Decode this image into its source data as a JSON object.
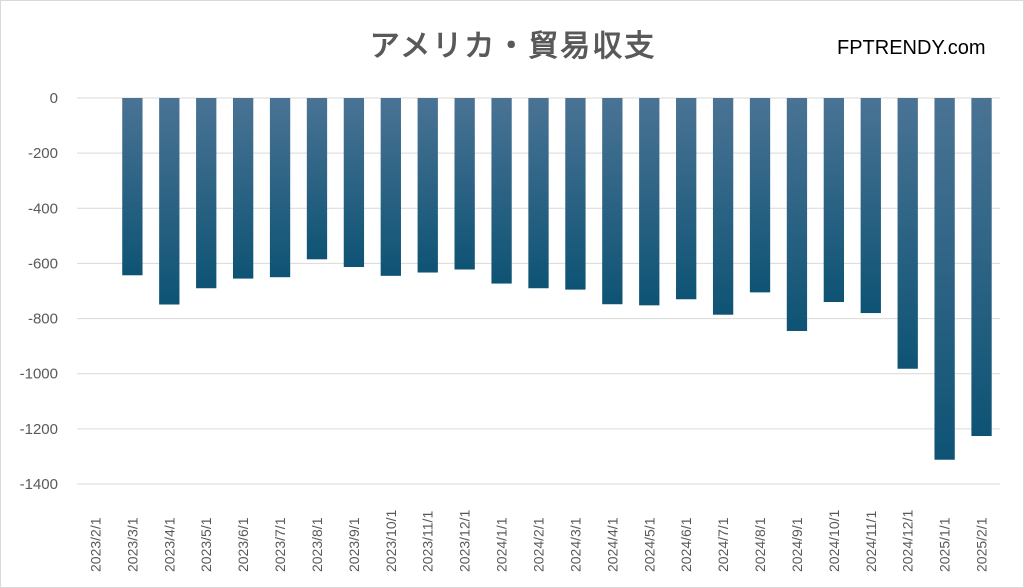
{
  "chart_data": {
    "type": "bar",
    "title": "アメリカ・貿易収支",
    "watermark": "FPTRENDY.com",
    "categories": [
      "2023/2/1",
      "2023/3/1",
      "2023/4/1",
      "2023/5/1",
      "2023/6/1",
      "2023/7/1",
      "2023/8/1",
      "2023/9/1",
      "2023/10/1",
      "2023/11/1",
      "2023/12/1",
      "2024/1/1",
      "2024/2/1",
      "2024/3/1",
      "2024/4/1",
      "2024/5/1",
      "2024/6/1",
      "2024/7/1",
      "2024/8/1",
      "2024/9/1",
      "2024/10/1",
      "2024/11/1",
      "2024/12/1",
      "2025/1/1",
      "2025/2/1"
    ],
    "values": [
      null,
      -643,
      -749,
      -690,
      -655,
      -650,
      -585,
      -613,
      -645,
      -633,
      -622,
      -673,
      -690,
      -695,
      -748,
      -752,
      -730,
      -786,
      -705,
      -845,
      -740,
      -780,
      -982,
      -1312,
      -1226
    ],
    "ylim": [
      -1400,
      0
    ],
    "yticks": [
      0,
      -200,
      -400,
      -600,
      -800,
      -1000,
      -1200,
      -1400
    ],
    "ytick_labels": [
      "0",
      "-200",
      "-400",
      "-600",
      "-800",
      "-1000",
      "-1200",
      "-1400"
    ],
    "xlabel": "",
    "ylabel": "",
    "grid": true,
    "legend": "none",
    "bar_color_top": "#4a7394",
    "bar_color_bottom": "#0e5374"
  }
}
